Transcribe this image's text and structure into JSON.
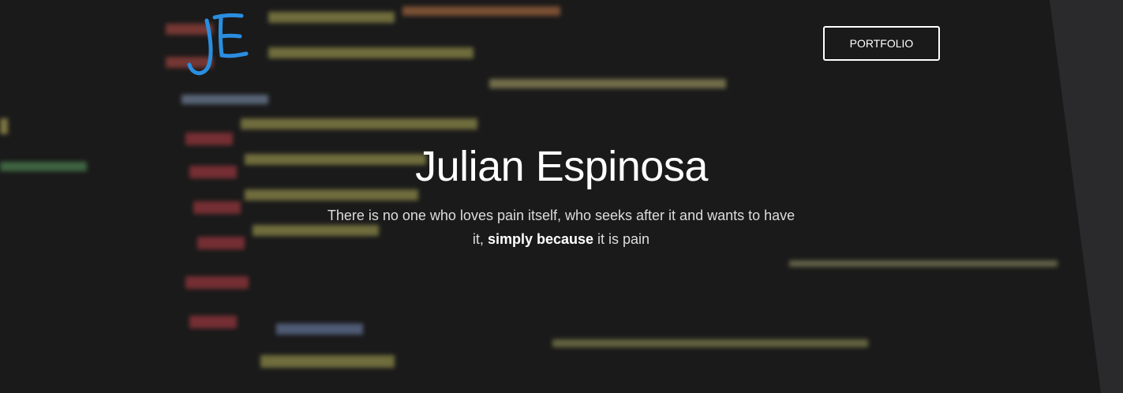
{
  "nav": {
    "button": "PORTFOLIO"
  },
  "hero": {
    "title": "Julian Espinosa",
    "subtitle": {
      "before": "There is no one who loves pain itself, who seeks after it and wants to have it, ",
      "bold": "simply because",
      "after": " it is pain"
    }
  }
}
